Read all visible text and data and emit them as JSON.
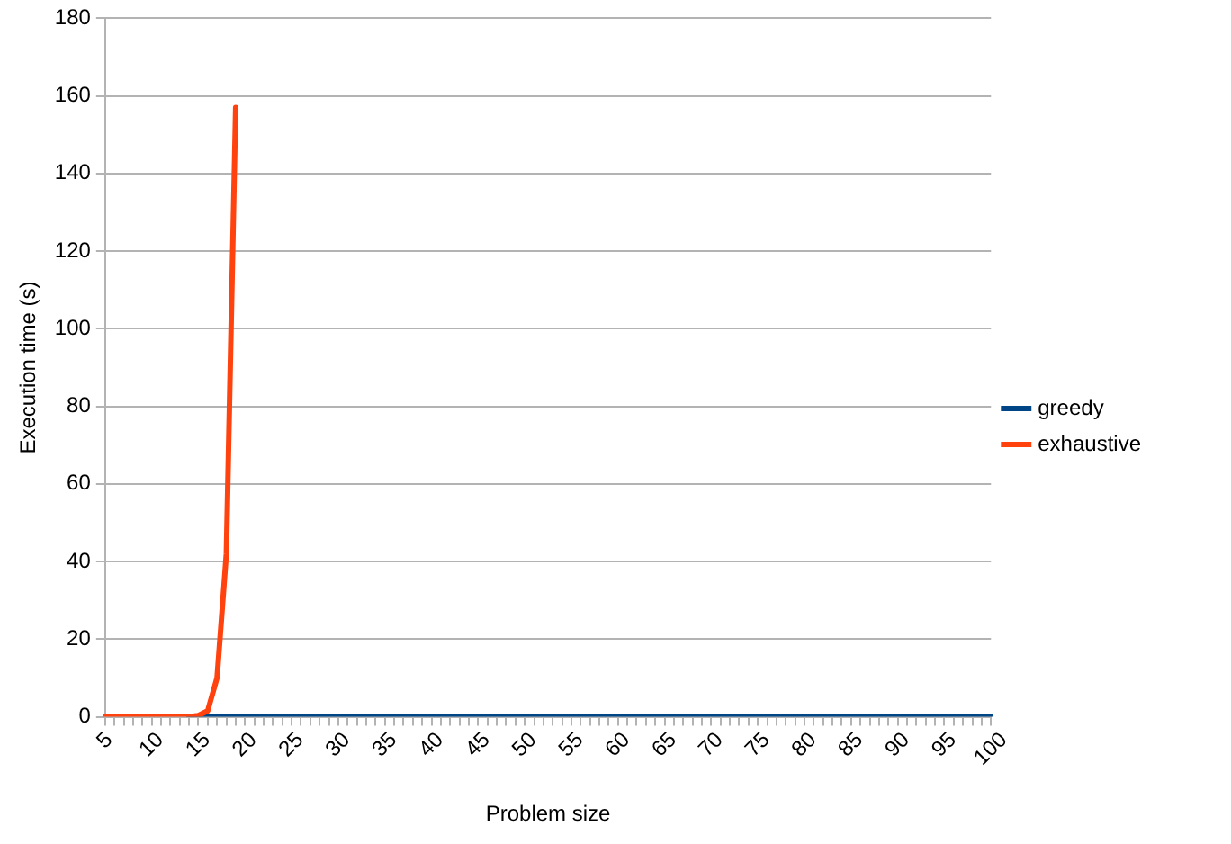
{
  "chart_data": {
    "type": "line",
    "xlabel": "Problem size",
    "ylabel": "Execution time (s)",
    "categories": [
      "5",
      null,
      null,
      null,
      null,
      "10",
      null,
      null,
      null,
      null,
      "15",
      null,
      null,
      null,
      null,
      "20",
      null,
      null,
      null,
      null,
      "25",
      null,
      null,
      null,
      null,
      "30",
      null,
      null,
      null,
      null,
      "35",
      null,
      null,
      null,
      null,
      "40",
      null,
      null,
      null,
      null,
      "45",
      null,
      null,
      null,
      null,
      "50",
      null,
      null,
      null,
      null,
      "55",
      null,
      null,
      null,
      null,
      "60",
      null,
      null,
      null,
      null,
      "65",
      null,
      null,
      null,
      null,
      "70",
      null,
      null,
      null,
      null,
      "75",
      null,
      null,
      null,
      null,
      "80",
      null,
      null,
      null,
      null,
      "85",
      null,
      null,
      null,
      null,
      "90",
      null,
      null,
      null,
      null,
      "95",
      null,
      null,
      null,
      null,
      "100"
    ],
    "series": [
      {
        "name": "greedy",
        "color": "#004586",
        "values": [
          null,
          null,
          null,
          null,
          null,
          null,
          null,
          null,
          null,
          0,
          0,
          0,
          0,
          0,
          0,
          0,
          0,
          0,
          0,
          0,
          0,
          0,
          0,
          0,
          0,
          0,
          0,
          0,
          0,
          0,
          0,
          0,
          0,
          0,
          0,
          0,
          0,
          0,
          0,
          0,
          0,
          0,
          0,
          0,
          0,
          0,
          0,
          0,
          0,
          0,
          0,
          0,
          0,
          0,
          0,
          0,
          0,
          0,
          0,
          0,
          0,
          0,
          0,
          0,
          0,
          0,
          0,
          0,
          0,
          0,
          0,
          0,
          0,
          0,
          0,
          0,
          0,
          0,
          0,
          0,
          0,
          0,
          0,
          0,
          0,
          0,
          0,
          0,
          0,
          0,
          0,
          0,
          0,
          0,
          0,
          0
        ]
      },
      {
        "name": "exhaustive",
        "color": "#ff420e",
        "values": [
          0,
          0,
          0,
          0,
          0,
          0,
          0,
          0,
          0,
          0,
          0.3,
          1.5,
          10,
          42,
          157,
          null,
          null,
          null,
          null,
          null,
          null,
          null,
          null,
          null,
          null,
          null,
          null,
          null,
          null,
          null,
          null,
          null,
          null,
          null,
          null,
          null,
          null,
          null,
          null,
          null,
          null,
          null,
          null,
          null,
          null,
          null,
          null,
          null,
          null,
          null,
          null,
          null,
          null,
          null,
          null,
          null,
          null,
          null,
          null,
          null,
          null,
          null,
          null,
          null,
          null,
          null,
          null,
          null,
          null,
          null,
          null,
          null,
          null,
          null,
          null,
          null,
          null,
          null,
          null,
          null,
          null,
          null,
          null,
          null,
          null,
          null,
          null,
          null,
          null,
          null,
          null,
          null,
          null,
          null,
          null,
          null
        ]
      }
    ],
    "ylim": [
      0,
      180
    ],
    "yticks": [
      0,
      20,
      40,
      60,
      80,
      100,
      120,
      140,
      160,
      180
    ],
    "grid": "y",
    "legend": "right",
    "marker": "none",
    "line_style": "solid"
  }
}
